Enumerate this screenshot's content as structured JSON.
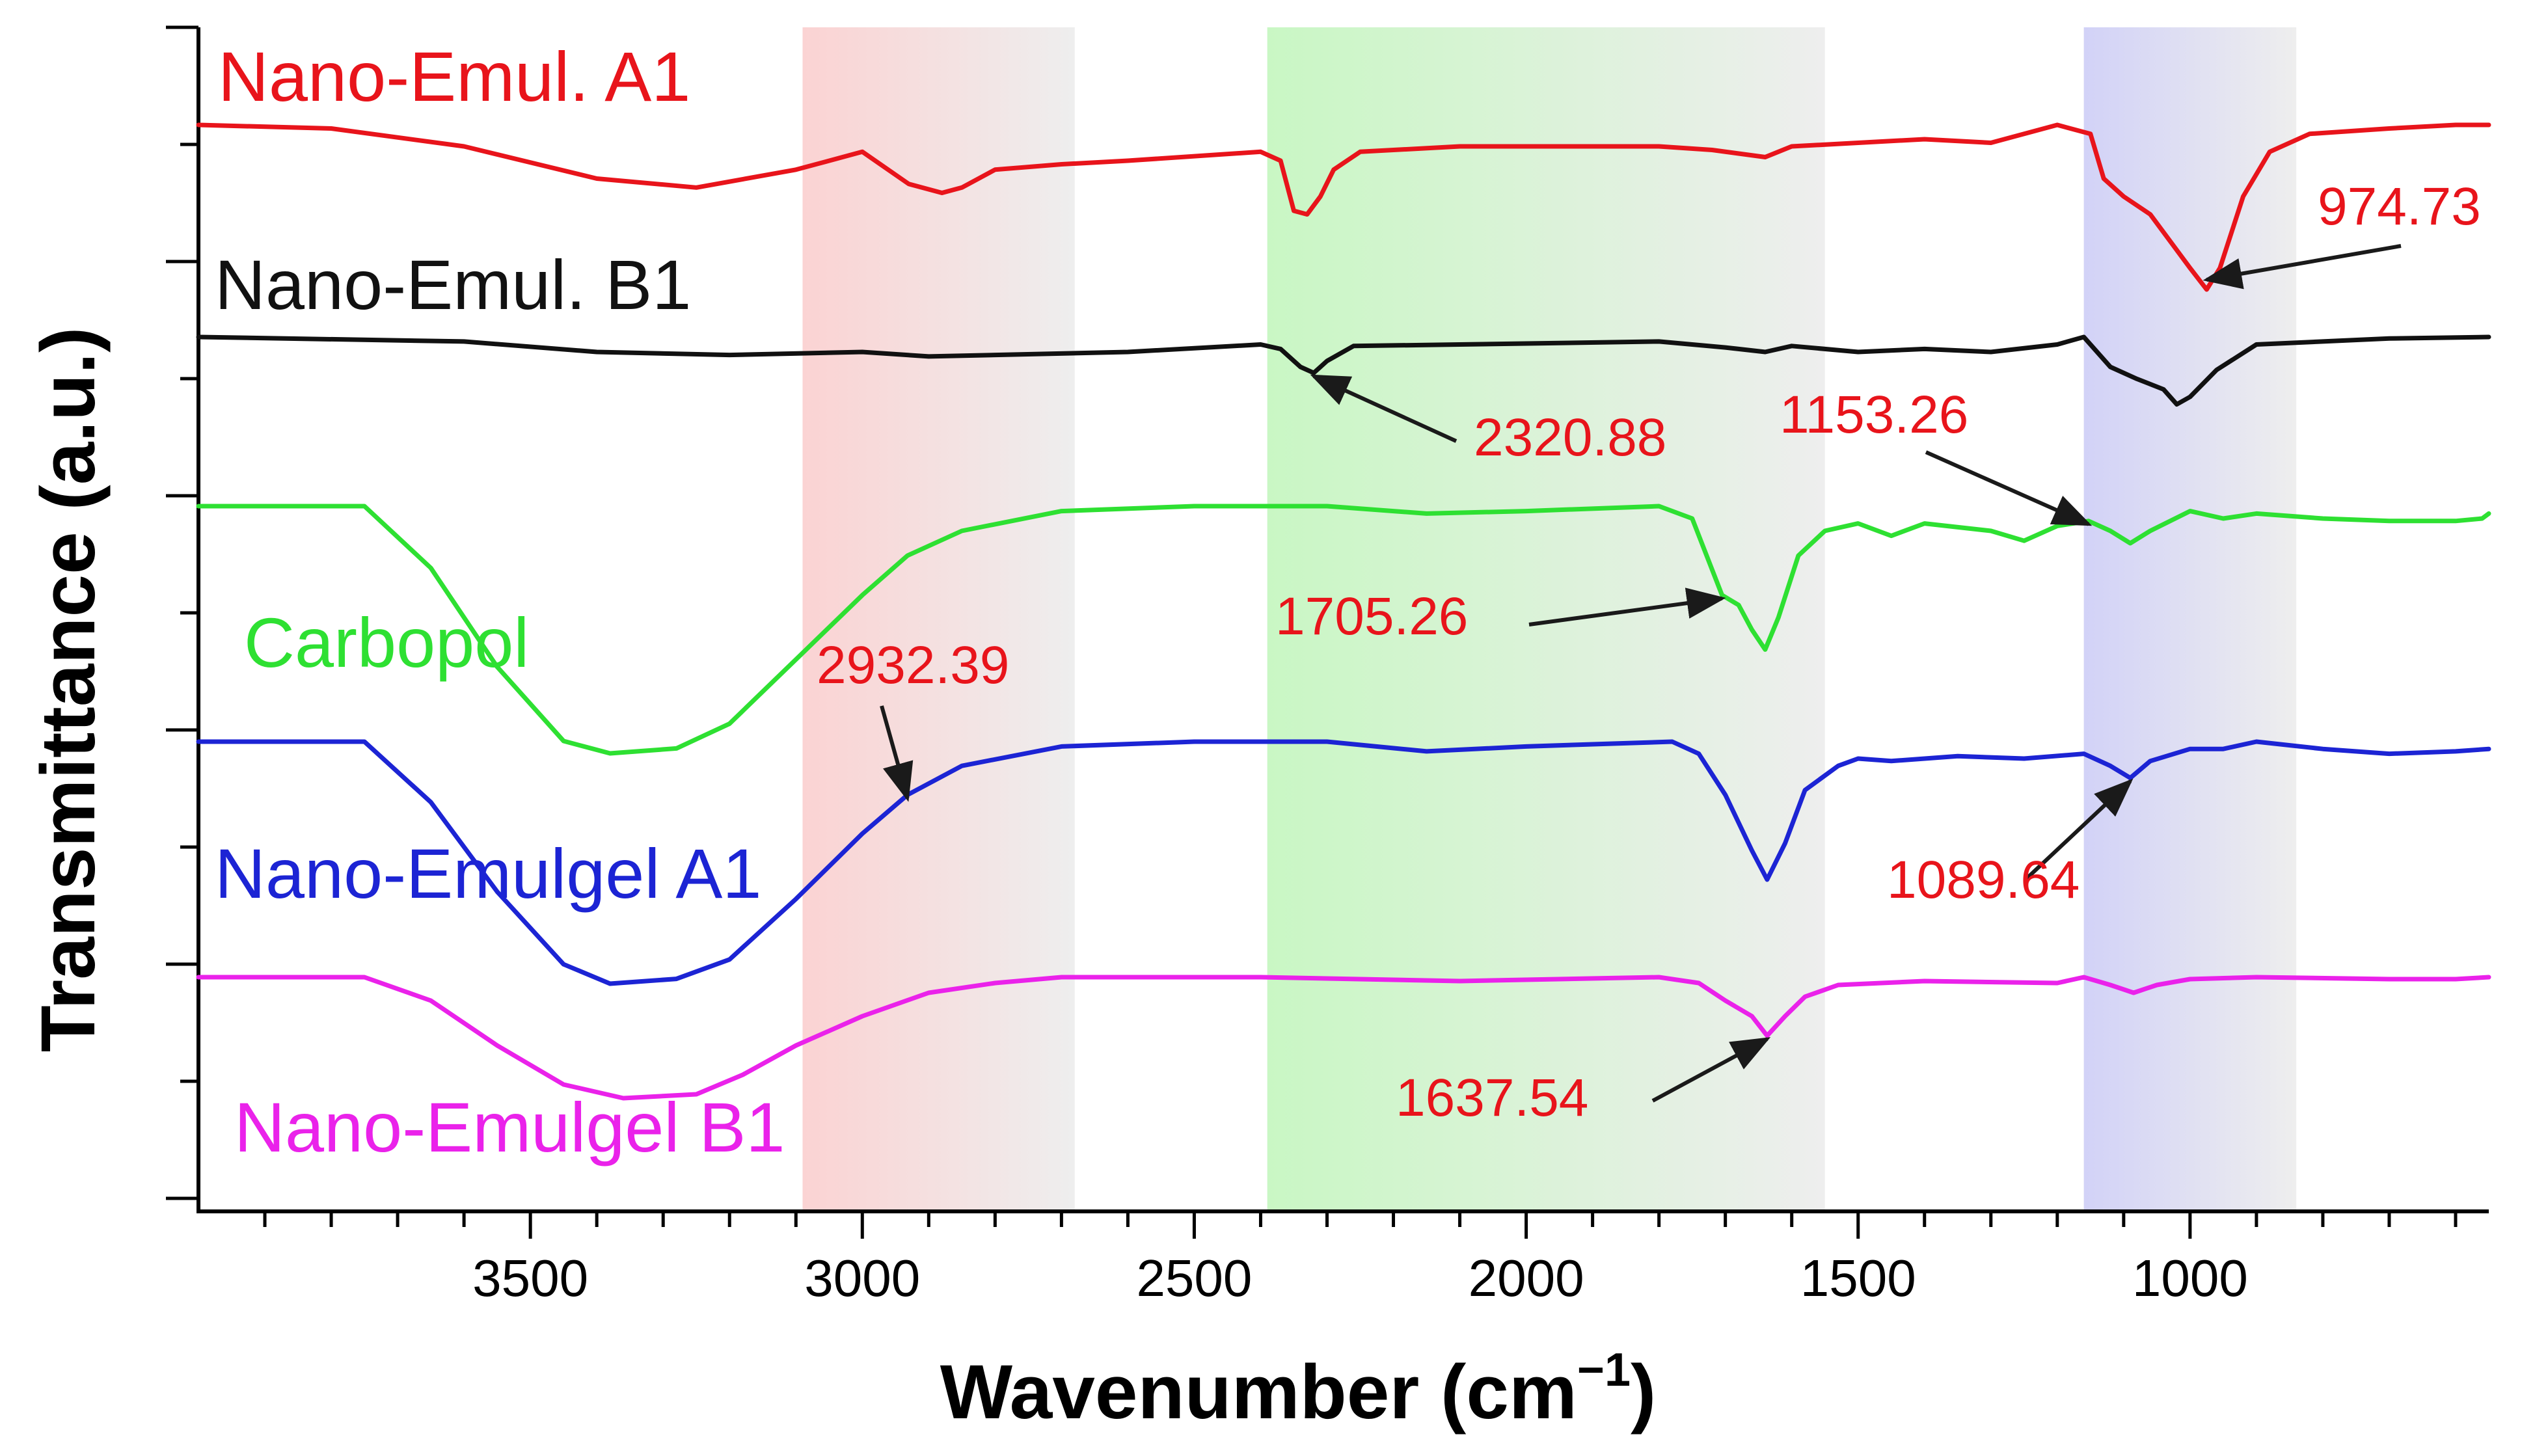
{
  "chart_data": {
    "type": "line",
    "xlabel": "Wavenumber (cm",
    "xlabel_sup": "−1",
    "xlabel_close": ")",
    "ylabel": "Transmittance (a.u.)",
    "xlim": [
      4000,
      550
    ],
    "x_reversed": true,
    "xticks": [
      3500,
      3000,
      2500,
      2000,
      1500,
      1000
    ],
    "xtick_labels": [
      "3500",
      "3000",
      "2500",
      "2000",
      "1500",
      "1000"
    ],
    "shaded_regions": [
      {
        "from": 3090,
        "to": 2680,
        "color_left": "#fbd3d3",
        "color_right": "#eeeeee"
      },
      {
        "from": 2390,
        "to": 1550,
        "color_left": "#c9f7c4",
        "color_right": "#eeeeee"
      },
      {
        "from": 1160,
        "to": 840,
        "color_left": "#d2d2f7",
        "color_right": "#eeeeee"
      }
    ],
    "series": [
      {
        "name": "Nano-Emul. A1",
        "color": "#e8141b",
        "baseline": 0.0,
        "points": [
          [
            4000,
            0.0
          ],
          [
            3800,
            0.02
          ],
          [
            3600,
            0.12
          ],
          [
            3400,
            0.3
          ],
          [
            3250,
            0.35
          ],
          [
            3100,
            0.25
          ],
          [
            3000,
            0.15
          ],
          [
            2930,
            0.33
          ],
          [
            2880,
            0.38
          ],
          [
            2850,
            0.35
          ],
          [
            2800,
            0.25
          ],
          [
            2700,
            0.22
          ],
          [
            2600,
            0.2
          ],
          [
            2400,
            0.15
          ],
          [
            2370,
            0.2
          ],
          [
            2350,
            0.48
          ],
          [
            2330,
            0.5
          ],
          [
            2310,
            0.4
          ],
          [
            2290,
            0.25
          ],
          [
            2250,
            0.15
          ],
          [
            2100,
            0.12
          ],
          [
            1800,
            0.12
          ],
          [
            1720,
            0.14
          ],
          [
            1640,
            0.18
          ],
          [
            1600,
            0.12
          ],
          [
            1500,
            0.1
          ],
          [
            1400,
            0.08
          ],
          [
            1300,
            0.1
          ],
          [
            1200,
            0.0
          ],
          [
            1150,
            0.05
          ],
          [
            1130,
            0.3
          ],
          [
            1100,
            0.4
          ],
          [
            1060,
            0.5
          ],
          [
            1000,
            0.8
          ],
          [
            975,
            0.92
          ],
          [
            955,
            0.8
          ],
          [
            920,
            0.4
          ],
          [
            880,
            0.15
          ],
          [
            820,
            0.05
          ],
          [
            700,
            0.02
          ],
          [
            600,
            0.0
          ],
          [
            550,
            0.0
          ]
        ]
      },
      {
        "name": "Nano-Emul. B1",
        "color": "#111111",
        "baseline": 0.0,
        "points": [
          [
            4000,
            0.0
          ],
          [
            3600,
            0.03
          ],
          [
            3400,
            0.1
          ],
          [
            3200,
            0.12
          ],
          [
            3000,
            0.1
          ],
          [
            2900,
            0.13
          ],
          [
            2800,
            0.12
          ],
          [
            2600,
            0.1
          ],
          [
            2400,
            0.05
          ],
          [
            2370,
            0.08
          ],
          [
            2340,
            0.2
          ],
          [
            2320,
            0.24
          ],
          [
            2300,
            0.16
          ],
          [
            2260,
            0.06
          ],
          [
            2100,
            0.05
          ],
          [
            1800,
            0.03
          ],
          [
            1700,
            0.07
          ],
          [
            1640,
            0.1
          ],
          [
            1600,
            0.06
          ],
          [
            1500,
            0.1
          ],
          [
            1400,
            0.08
          ],
          [
            1300,
            0.1
          ],
          [
            1200,
            0.05
          ],
          [
            1160,
            0.0
          ],
          [
            1120,
            0.2
          ],
          [
            1080,
            0.28
          ],
          [
            1040,
            0.35
          ],
          [
            1020,
            0.45
          ],
          [
            1000,
            0.4
          ],
          [
            960,
            0.22
          ],
          [
            900,
            0.05
          ],
          [
            800,
            0.03
          ],
          [
            700,
            0.01
          ],
          [
            550,
            0.0
          ]
        ]
      },
      {
        "name": "Carbopol",
        "color": "#2ee032",
        "baseline": 0.0,
        "points": [
          [
            4000,
            0.0
          ],
          [
            3750,
            0.0
          ],
          [
            3650,
            0.25
          ],
          [
            3550,
            0.65
          ],
          [
            3450,
            0.95
          ],
          [
            3380,
            1.0
          ],
          [
            3280,
            0.98
          ],
          [
            3200,
            0.88
          ],
          [
            3100,
            0.62
          ],
          [
            3000,
            0.36
          ],
          [
            2932,
            0.2
          ],
          [
            2850,
            0.1
          ],
          [
            2700,
            0.02
          ],
          [
            2500,
            0.0
          ],
          [
            2300,
            0.0
          ],
          [
            2150,
            0.03
          ],
          [
            2000,
            0.02
          ],
          [
            1800,
            0.0
          ],
          [
            1750,
            0.05
          ],
          [
            1705,
            0.36
          ],
          [
            1680,
            0.4
          ],
          [
            1660,
            0.5
          ],
          [
            1640,
            0.58
          ],
          [
            1620,
            0.45
          ],
          [
            1590,
            0.2
          ],
          [
            1550,
            0.1
          ],
          [
            1500,
            0.07
          ],
          [
            1450,
            0.12
          ],
          [
            1400,
            0.07
          ],
          [
            1300,
            0.1
          ],
          [
            1250,
            0.14
          ],
          [
            1200,
            0.08
          ],
          [
            1153,
            0.06
          ],
          [
            1120,
            0.1
          ],
          [
            1090,
            0.15
          ],
          [
            1060,
            0.1
          ],
          [
            1000,
            0.02
          ],
          [
            950,
            0.05
          ],
          [
            900,
            0.03
          ],
          [
            800,
            0.05
          ],
          [
            700,
            0.06
          ],
          [
            600,
            0.06
          ],
          [
            560,
            0.05
          ],
          [
            550,
            0.03
          ]
        ]
      },
      {
        "name": "Nano-Emulgel A1",
        "color": "#1c24d4",
        "baseline": 0.0,
        "points": [
          [
            4000,
            0.0
          ],
          [
            3750,
            0.0
          ],
          [
            3650,
            0.25
          ],
          [
            3550,
            0.62
          ],
          [
            3450,
            0.92
          ],
          [
            3380,
            1.0
          ],
          [
            3280,
            0.98
          ],
          [
            3200,
            0.9
          ],
          [
            3100,
            0.65
          ],
          [
            3000,
            0.38
          ],
          [
            2932,
            0.22
          ],
          [
            2850,
            0.1
          ],
          [
            2700,
            0.02
          ],
          [
            2500,
            0.0
          ],
          [
            2300,
            0.0
          ],
          [
            2150,
            0.04
          ],
          [
            2000,
            0.02
          ],
          [
            1780,
            0.0
          ],
          [
            1740,
            0.05
          ],
          [
            1700,
            0.22
          ],
          [
            1660,
            0.45
          ],
          [
            1637,
            0.57
          ],
          [
            1610,
            0.42
          ],
          [
            1580,
            0.2
          ],
          [
            1530,
            0.1
          ],
          [
            1500,
            0.07
          ],
          [
            1450,
            0.08
          ],
          [
            1350,
            0.06
          ],
          [
            1250,
            0.07
          ],
          [
            1160,
            0.05
          ],
          [
            1120,
            0.1
          ],
          [
            1090,
            0.15
          ],
          [
            1060,
            0.08
          ],
          [
            1000,
            0.03
          ],
          [
            950,
            0.03
          ],
          [
            900,
            0.0
          ],
          [
            800,
            0.03
          ],
          [
            700,
            0.05
          ],
          [
            600,
            0.04
          ],
          [
            550,
            0.03
          ]
        ]
      },
      {
        "name": "Nano-Emulgel B1",
        "color": "#ea22ea",
        "baseline": 0.0,
        "points": [
          [
            4000,
            0.0
          ],
          [
            3750,
            0.0
          ],
          [
            3650,
            0.12
          ],
          [
            3550,
            0.35
          ],
          [
            3450,
            0.55
          ],
          [
            3360,
            0.62
          ],
          [
            3250,
            0.6
          ],
          [
            3180,
            0.5
          ],
          [
            3100,
            0.35
          ],
          [
            3000,
            0.2
          ],
          [
            2900,
            0.08
          ],
          [
            2800,
            0.03
          ],
          [
            2700,
            0.0
          ],
          [
            2400,
            0.0
          ],
          [
            2100,
            0.02
          ],
          [
            1800,
            0.0
          ],
          [
            1740,
            0.03
          ],
          [
            1700,
            0.12
          ],
          [
            1660,
            0.2
          ],
          [
            1637,
            0.3
          ],
          [
            1610,
            0.2
          ],
          [
            1580,
            0.1
          ],
          [
            1530,
            0.04
          ],
          [
            1400,
            0.02
          ],
          [
            1200,
            0.03
          ],
          [
            1160,
            0.0
          ],
          [
            1120,
            0.04
          ],
          [
            1085,
            0.08
          ],
          [
            1050,
            0.04
          ],
          [
            1000,
            0.01
          ],
          [
            900,
            0.0
          ],
          [
            700,
            0.01
          ],
          [
            600,
            0.01
          ],
          [
            550,
            0.0
          ]
        ]
      }
    ],
    "annotations": [
      {
        "text": "974.73",
        "x": 975,
        "series": "Nano-Emul. A1"
      },
      {
        "text": "2320.88",
        "x": 2320,
        "series": "Nano-Emul. B1"
      },
      {
        "text": "1153.26",
        "x": 1153,
        "series": "Carbopol"
      },
      {
        "text": "1705.26",
        "x": 1705,
        "series": "Carbopol"
      },
      {
        "text": "2932.39",
        "x": 2932,
        "series": "Nano-Emulgel A1"
      },
      {
        "text": "1089.64",
        "x": 1090,
        "series": "Nano-Emulgel A1"
      },
      {
        "text": "1637.54",
        "x": 1637,
        "series": "Nano-Emulgel B1"
      }
    ]
  }
}
